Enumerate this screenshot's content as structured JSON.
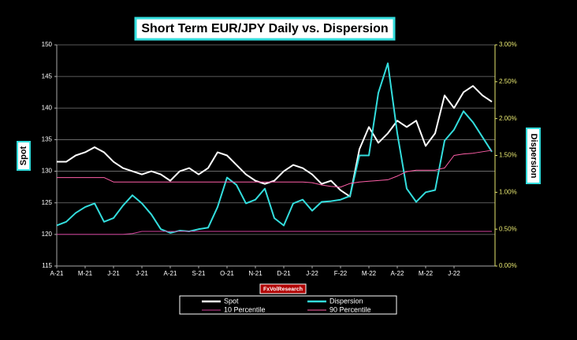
{
  "chart_data": {
    "type": "line",
    "title": "Short Term EUR/JPY Daily vs. Dispersion",
    "y_label": "Spot",
    "y2_label": "Dispersion",
    "watermark": "FxVolResearch",
    "categories": [
      "A-21",
      null,
      null,
      "M-21",
      null,
      null,
      "J-21",
      null,
      null,
      "J-21",
      null,
      null,
      "A-21",
      null,
      null,
      "S-21",
      null,
      null,
      "O-21",
      null,
      null,
      "N-21",
      null,
      null,
      "D-21",
      null,
      null,
      "J-22",
      null,
      null,
      "F-22",
      null,
      null,
      "M-22",
      null,
      null,
      "A-22",
      null,
      null,
      "M-22",
      null,
      null,
      "J-22",
      null,
      null,
      null,
      null
    ],
    "ylim": [
      115,
      150
    ],
    "yticks": [
      115,
      120,
      125,
      130,
      135,
      140,
      145,
      150
    ],
    "y2lim": [
      0,
      3
    ],
    "y2ticks": [
      {
        "value": 0,
        "label": "0.00%"
      },
      {
        "value": 0.5,
        "label": "0.50%"
      },
      {
        "value": 1,
        "label": "1.00%"
      },
      {
        "value": 1.5,
        "label": "1.50%"
      },
      {
        "value": 2,
        "label": "2.00%"
      },
      {
        "value": 2.5,
        "label": "2.50%"
      },
      {
        "value": 3,
        "label": "3.00%"
      }
    ],
    "grid": true,
    "series": [
      {
        "name": "Spot",
        "color": "#ffffff",
        "values": [
          131.5,
          131.5,
          132.5,
          133,
          133.8,
          133,
          131.5,
          130.5,
          130,
          129.5,
          130,
          129.5,
          128.5,
          130,
          130.5,
          129.5,
          130.5,
          133,
          132.5,
          131,
          129.5,
          128.5,
          128,
          128.5,
          130,
          131,
          130.5,
          129.5,
          128,
          128.5,
          127,
          126,
          133.5,
          137,
          134.5,
          136,
          138,
          137,
          138,
          134,
          136,
          142,
          140,
          142.5,
          143.5,
          142,
          141
        ]
      },
      {
        "name": "Dispersion",
        "color": "#33dddd",
        "axis": "y2",
        "values": [
          0.55,
          0.6,
          0.72,
          0.8,
          0.85,
          0.6,
          0.65,
          0.82,
          0.96,
          0.85,
          0.7,
          0.5,
          0.45,
          0.48,
          0.47,
          0.5,
          0.52,
          0.8,
          1.2,
          1.1,
          0.85,
          0.9,
          1.05,
          0.65,
          0.55,
          0.85,
          0.9,
          0.75,
          0.87,
          0.88,
          0.9,
          0.95,
          1.5,
          1.5,
          2.35,
          2.75,
          1.8,
          1.05,
          0.87,
          1.0,
          1.03,
          1.7,
          1.85,
          2.1,
          1.95,
          1.75,
          1.55
        ]
      },
      {
        "name": "10 Percentile",
        "color": "#d0409a",
        "axis": "y2",
        "values": [
          0.43,
          0.43,
          0.43,
          0.43,
          0.43,
          0.43,
          0.43,
          0.43,
          0.44,
          0.47,
          0.47,
          0.47,
          0.47,
          0.47,
          0.47,
          0.47,
          0.47,
          0.47,
          0.47,
          0.47,
          0.47,
          0.47,
          0.47,
          0.47,
          0.47,
          0.47,
          0.47,
          0.47,
          0.47,
          0.47,
          0.47,
          0.47,
          0.47,
          0.47,
          0.47,
          0.47,
          0.47,
          0.47,
          0.47,
          0.47,
          0.47,
          0.47,
          0.47,
          0.47,
          0.47,
          0.47,
          0.47
        ]
      },
      {
        "name": "90 Percentile",
        "color": "#ff5fa8",
        "axis": "y2",
        "values": [
          1.2,
          1.2,
          1.2,
          1.2,
          1.2,
          1.2,
          1.14,
          1.14,
          1.14,
          1.14,
          1.14,
          1.14,
          1.14,
          1.14,
          1.14,
          1.14,
          1.14,
          1.14,
          1.14,
          1.14,
          1.14,
          1.14,
          1.14,
          1.14,
          1.14,
          1.14,
          1.14,
          1.13,
          1.1,
          1.08,
          1.07,
          1.12,
          1.14,
          1.15,
          1.16,
          1.17,
          1.22,
          1.28,
          1.3,
          1.3,
          1.3,
          1.33,
          1.5,
          1.52,
          1.53,
          1.55,
          1.57
        ]
      }
    ]
  }
}
